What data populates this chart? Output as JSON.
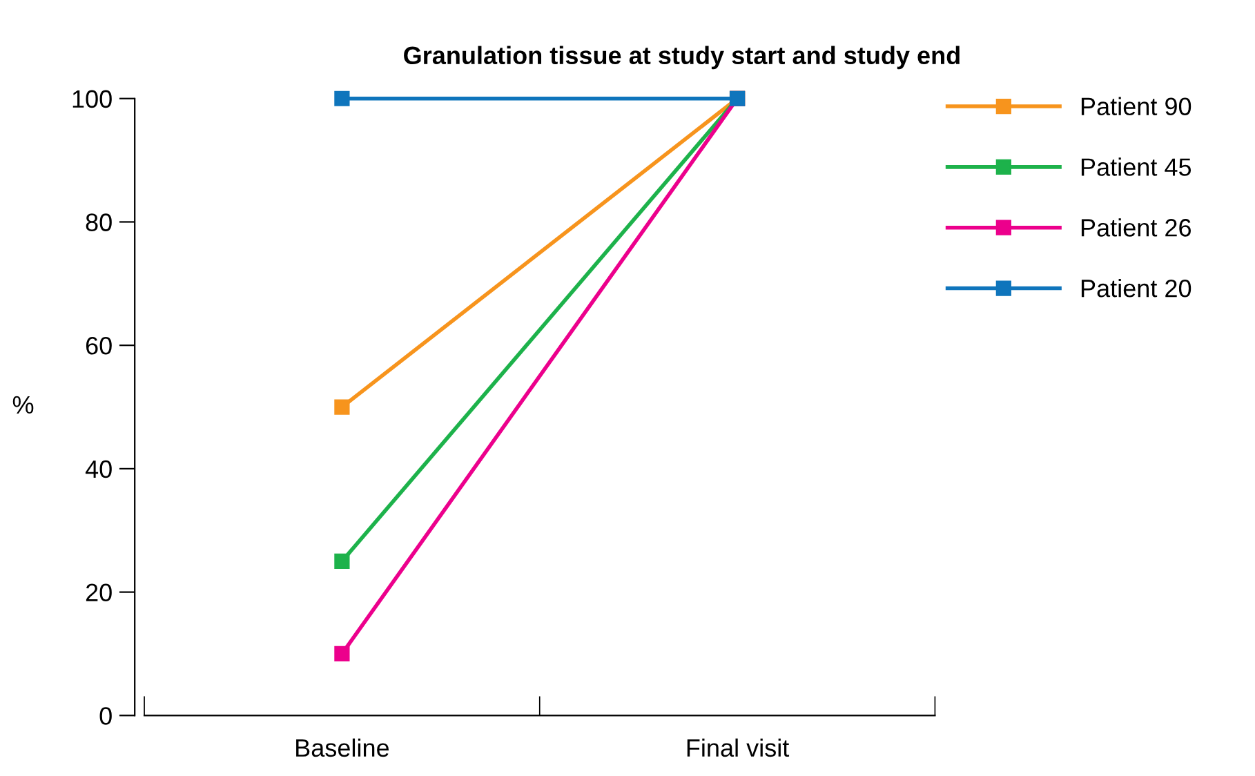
{
  "chart_data": {
    "type": "line",
    "title": "Granulation tissue at study start and study end",
    "ylabel": "%",
    "categories": [
      "Baseline",
      "Final visit"
    ],
    "series": [
      {
        "name": "Patient 90",
        "color": "#f7941d",
        "values": [
          50,
          100
        ]
      },
      {
        "name": "Patient 45",
        "color": "#1db24b",
        "values": [
          25,
          100
        ]
      },
      {
        "name": "Patient 26",
        "color": "#ec008c",
        "values": [
          10,
          100
        ]
      },
      {
        "name": "Patient 20",
        "color": "#0f75bc",
        "values": [
          100,
          100
        ]
      }
    ],
    "ylim": [
      0,
      100
    ],
    "yticks": [
      0,
      20,
      40,
      60,
      80,
      100
    ],
    "grid": false,
    "legend": "top right",
    "marker": "square",
    "line_style": "solid"
  }
}
